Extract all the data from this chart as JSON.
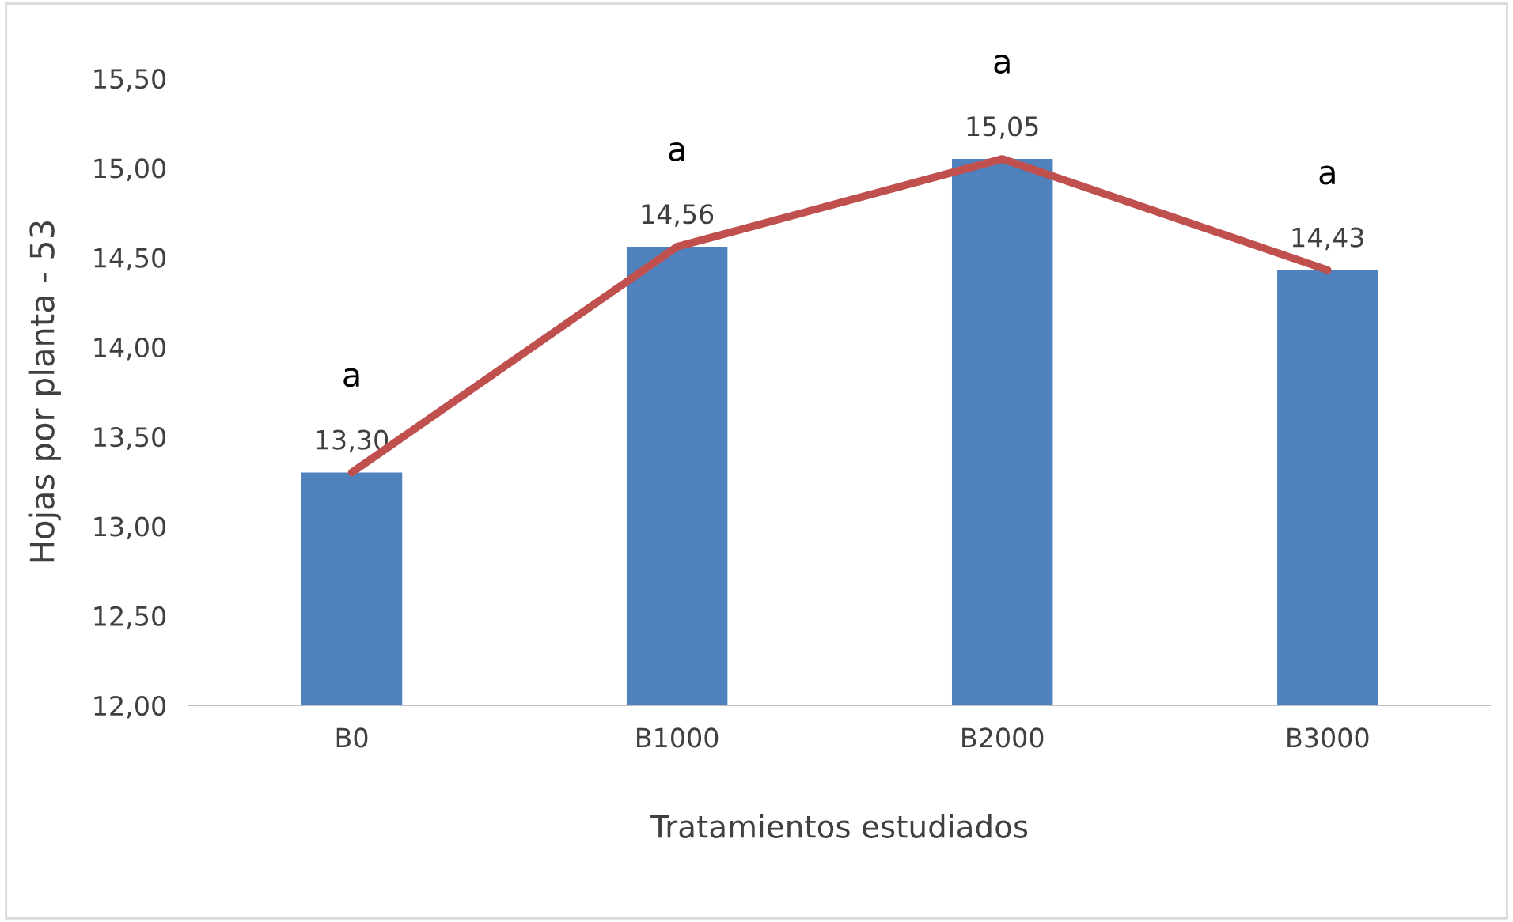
{
  "chart_data": {
    "type": "bar",
    "xlabel": "Tratamientos estudiados",
    "ylabel": "Hojas por planta - 53",
    "categories": [
      "B0",
      "B1000",
      "B2000",
      "B3000"
    ],
    "series": [
      {
        "color": "#4f81bd",
        "values": [
          13.3,
          14.56,
          15.05,
          14.43
        ],
        "value_labels": [
          "13,30",
          "14,56",
          "15,05",
          "14,43"
        ]
      },
      {
        "type": "line",
        "color": "#c0504d",
        "values": [
          13.3,
          14.56,
          15.05,
          14.43
        ],
        "marker": "none",
        "line_style": "solid"
      }
    ],
    "ylim": [
      12,
      15.5
    ],
    "yticks": [
      {
        "value": 12,
        "label": "12,00"
      },
      {
        "value": 12.5,
        "label": "12,50"
      },
      {
        "value": 13,
        "label": "13,00"
      },
      {
        "value": 13.5,
        "label": "13,50"
      },
      {
        "value": 14,
        "label": "14,00"
      },
      {
        "value": 14.5,
        "label": "14,50"
      },
      {
        "value": 15,
        "label": "15,00"
      },
      {
        "value": 15.5,
        "label": "15,50"
      }
    ],
    "grid": false,
    "legend": false,
    "annotations": [
      "a",
      "a",
      "a",
      "a"
    ]
  }
}
